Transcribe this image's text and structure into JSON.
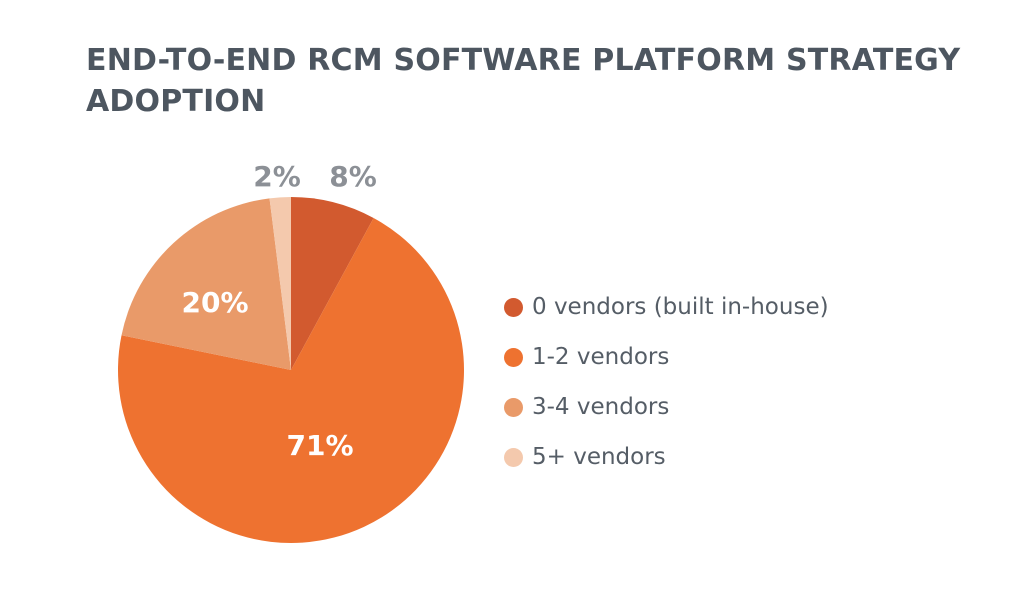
{
  "chart_data": {
    "type": "pie",
    "title": "END-TO-END RCM SOFTWARE PLATFORM STRATEGY ADOPTION",
    "legend_position": "right",
    "slices": [
      {
        "label": "0 vendors (built in-house)",
        "value": 8,
        "display": "8%",
        "color": "#d25a2f",
        "label_color": "#8c9096"
      },
      {
        "label": "1-2 vendors",
        "value": 71,
        "display": "71%",
        "color": "#ee7230",
        "label_color": "#ffffff"
      },
      {
        "label": "3-4 vendors",
        "value": 20,
        "display": "20%",
        "color": "#e99a69",
        "label_color": "#ffffff"
      },
      {
        "label": "5+ vendors",
        "value": 2,
        "display": "2%",
        "color": "#f4c9ad",
        "label_color": "#8c9096"
      }
    ]
  }
}
